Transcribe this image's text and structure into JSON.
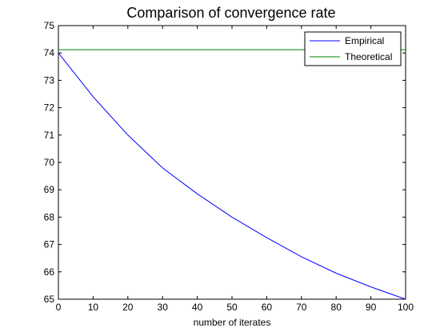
{
  "chart_data": {
    "type": "line",
    "title": "Comparison of convergence rate",
    "xlabel": "number of iterates",
    "ylabel": "",
    "xlim": [
      0,
      100
    ],
    "ylim": [
      65,
      75
    ],
    "xticks": [
      0,
      10,
      20,
      30,
      40,
      50,
      60,
      70,
      80,
      90,
      100
    ],
    "yticks": [
      65,
      66,
      67,
      68,
      69,
      70,
      71,
      72,
      73,
      74,
      75
    ],
    "grid": false,
    "legend_position": "top-right",
    "series": [
      {
        "name": "Empirical",
        "color": "#0000ff",
        "x": [
          0,
          10,
          20,
          30,
          40,
          50,
          60,
          70,
          80,
          90,
          100
        ],
        "y": [
          74.0,
          72.4,
          71.0,
          69.8,
          68.85,
          68.0,
          67.25,
          66.55,
          65.95,
          65.45,
          65.0
        ]
      },
      {
        "name": "Theoretical",
        "color": "#008000",
        "x": [
          0,
          100
        ],
        "y": [
          74.12,
          74.12
        ]
      }
    ]
  }
}
